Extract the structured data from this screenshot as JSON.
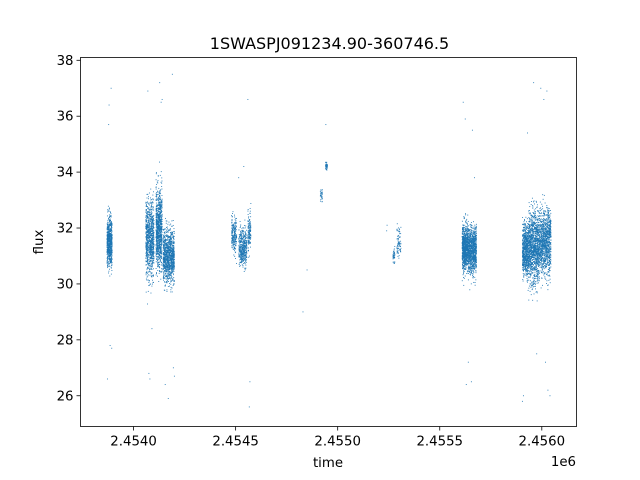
{
  "chart_data": {
    "type": "scatter",
    "title": "1SWASPJ091234.90-360746.5",
    "xlabel": "time",
    "ylabel": "flux",
    "x_offset_label": "1e6",
    "xlim": [
      2453740,
      2456170
    ],
    "ylim": [
      24.9,
      38.1
    ],
    "x_ticks": [
      2454000,
      2454500,
      2455000,
      2455500,
      2456000
    ],
    "x_tick_labels": [
      "2.4540",
      "2.4545",
      "2.4550",
      "2.4555",
      "2.4560"
    ],
    "y_ticks": [
      26,
      28,
      30,
      32,
      34,
      36,
      38
    ],
    "y_tick_labels": [
      "26",
      "28",
      "30",
      "32",
      "34",
      "36",
      "38"
    ],
    "grid": false,
    "marker_color": "#1f77b4",
    "clusters": [
      {
        "x_start": 2453870,
        "x_end": 2453895,
        "y_center": 31.5,
        "y_spread": 1.4,
        "n": 700
      },
      {
        "x_start": 2454060,
        "x_end": 2454100,
        "y_center": 31.6,
        "y_spread": 2.0,
        "n": 900
      },
      {
        "x_start": 2454110,
        "x_end": 2454140,
        "y_center": 32.0,
        "y_spread": 2.2,
        "n": 900
      },
      {
        "x_start": 2454145,
        "x_end": 2454200,
        "y_center": 31.0,
        "y_spread": 1.4,
        "n": 1100
      },
      {
        "x_start": 2454480,
        "x_end": 2454505,
        "y_center": 31.8,
        "y_spread": 1.0,
        "n": 220
      },
      {
        "x_start": 2454515,
        "x_end": 2454555,
        "y_center": 31.3,
        "y_spread": 1.0,
        "n": 420
      },
      {
        "x_start": 2454560,
        "x_end": 2454575,
        "y_center": 31.8,
        "y_spread": 1.2,
        "n": 140
      },
      {
        "x_start": 2454915,
        "x_end": 2454925,
        "y_center": 33.2,
        "y_spread": 0.4,
        "n": 30
      },
      {
        "x_start": 2454940,
        "x_end": 2454950,
        "y_center": 34.2,
        "y_spread": 0.3,
        "n": 45
      },
      {
        "x_start": 2455270,
        "x_end": 2455280,
        "y_center": 31.0,
        "y_spread": 0.4,
        "n": 40
      },
      {
        "x_start": 2455290,
        "x_end": 2455310,
        "y_center": 31.5,
        "y_spread": 0.8,
        "n": 70
      },
      {
        "x_start": 2455610,
        "x_end": 2455640,
        "y_center": 31.3,
        "y_spread": 1.2,
        "n": 900
      },
      {
        "x_start": 2455640,
        "x_end": 2455680,
        "y_center": 31.2,
        "y_spread": 1.3,
        "n": 900
      },
      {
        "x_start": 2455905,
        "x_end": 2455935,
        "y_center": 31.2,
        "y_spread": 1.4,
        "n": 700
      },
      {
        "x_start": 2455935,
        "x_end": 2455985,
        "y_center": 31.3,
        "y_spread": 2.0,
        "n": 1100
      },
      {
        "x_start": 2455985,
        "x_end": 2456045,
        "y_center": 31.5,
        "y_spread": 1.7,
        "n": 1100
      }
    ],
    "outliers": [
      [
        2453872,
        26.6
      ],
      [
        2453885,
        27.8
      ],
      [
        2453893,
        27.7
      ],
      [
        2453880,
        36.4
      ],
      [
        2453890,
        37.0
      ],
      [
        2453878,
        35.7
      ],
      [
        2454070,
        36.9
      ],
      [
        2454075,
        26.8
      ],
      [
        2454080,
        26.6
      ],
      [
        2454090,
        28.4
      ],
      [
        2454128,
        37.2
      ],
      [
        2454135,
        36.5
      ],
      [
        2454140,
        36.6
      ],
      [
        2454155,
        26.4
      ],
      [
        2454170,
        25.9
      ],
      [
        2454190,
        37.5
      ],
      [
        2454200,
        26.7
      ],
      [
        2454195,
        27.0
      ],
      [
        2454560,
        36.6
      ],
      [
        2454567,
        25.6
      ],
      [
        2454570,
        26.5
      ],
      [
        2454540,
        34.2
      ],
      [
        2454515,
        33.8
      ],
      [
        2454850,
        30.5
      ],
      [
        2454830,
        29.0
      ],
      [
        2454942,
        35.7
      ],
      [
        2455240,
        31.9
      ],
      [
        2455242,
        32.1
      ],
      [
        2455615,
        36.5
      ],
      [
        2455625,
        35.9
      ],
      [
        2455630,
        26.4
      ],
      [
        2455640,
        27.2
      ],
      [
        2455655,
        26.5
      ],
      [
        2455660,
        35.5
      ],
      [
        2455670,
        33.8
      ],
      [
        2455905,
        25.8
      ],
      [
        2455910,
        26.0
      ],
      [
        2455930,
        35.4
      ],
      [
        2455960,
        37.2
      ],
      [
        2455995,
        37.0
      ],
      [
        2456010,
        36.6
      ],
      [
        2456025,
        36.9
      ],
      [
        2456030,
        26.2
      ],
      [
        2456018,
        27.2
      ],
      [
        2456040,
        26.0
      ],
      [
        2455975,
        27.5
      ]
    ]
  }
}
